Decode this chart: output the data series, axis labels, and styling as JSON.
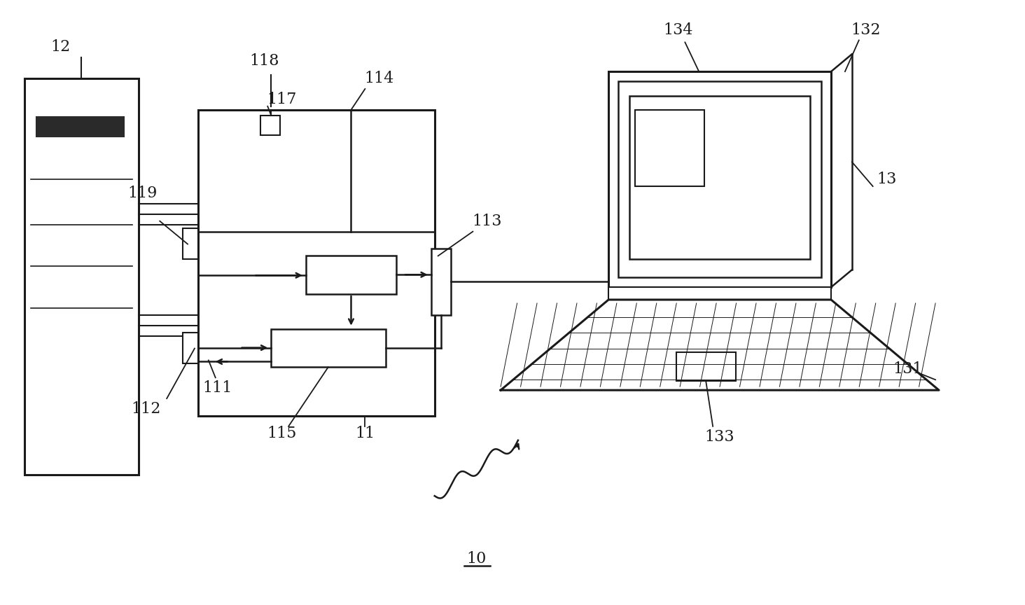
{
  "bg_color": "#ffffff",
  "line_color": "#1a1a1a",
  "fig_width": 14.64,
  "fig_height": 8.64,
  "dpi": 100,
  "xlim": [
    0,
    1464
  ],
  "ylim": [
    0,
    864
  ]
}
